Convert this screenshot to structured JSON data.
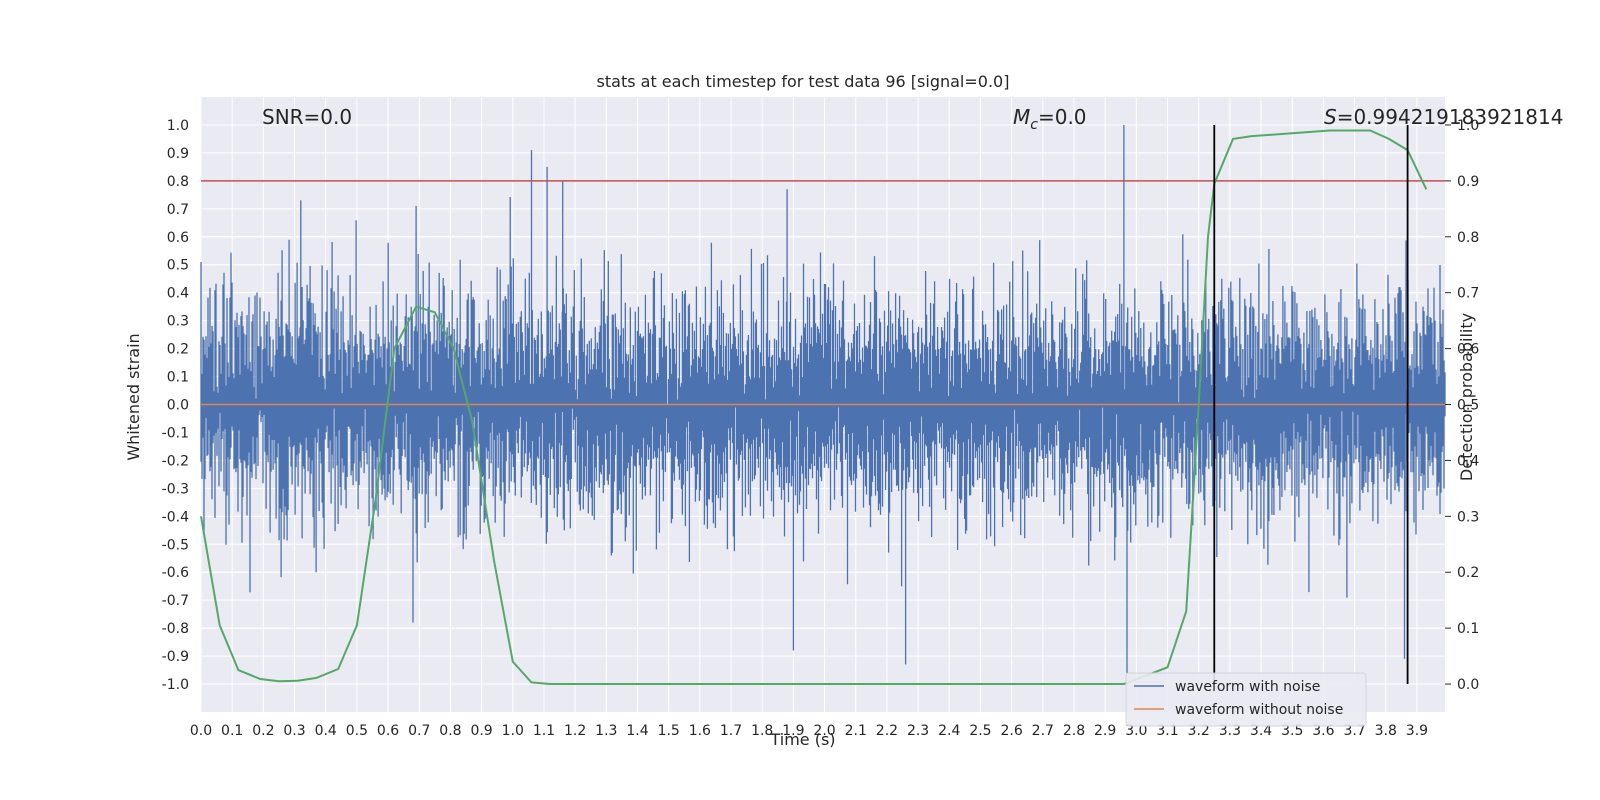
{
  "chart_data": {
    "type": "line",
    "title": "stats at each timestep for test data 96 [signal=0.0]",
    "xlabel": "Time (s)",
    "ylabel": "Whitened strain",
    "y2label": "Detection probability",
    "xlim": [
      0.0,
      3.99
    ],
    "ylim": [
      -1.1,
      1.1
    ],
    "y2lim": [
      -0.05,
      1.05
    ],
    "x_ticks": [
      0.0,
      0.1,
      0.2,
      0.3,
      0.4,
      0.5,
      0.6,
      0.7,
      0.8,
      0.9,
      1.0,
      1.1,
      1.2,
      1.3,
      1.4,
      1.5,
      1.6,
      1.7,
      1.8,
      1.9,
      2.0,
      2.1,
      2.2,
      2.3,
      2.4,
      2.5,
      2.6,
      2.7,
      2.8,
      2.9,
      3.0,
      3.1,
      3.2,
      3.3,
      3.4,
      3.5,
      3.6,
      3.7,
      3.8,
      3.9
    ],
    "x_tick_labels": [
      "0.0",
      "0.1",
      "0.2",
      "0.3",
      "0.4",
      "0.5",
      "0.6",
      "0.7",
      "0.8",
      "0.9",
      "1.0",
      "1.1",
      "1.2",
      "1.3",
      "1.4",
      "1.5",
      "1.6",
      "1.7",
      "1.8",
      "1.9",
      "2.0",
      "2.1",
      "2.2",
      "2.3",
      "2.4",
      "2.5",
      "2.6",
      "2.7",
      "2.8",
      "2.9",
      "3.0",
      "3.1",
      "3.2",
      "3.3",
      "3.4",
      "3.5",
      "3.6",
      "3.7",
      "3.8",
      "3.9"
    ],
    "y_ticks": [
      1.0,
      0.9,
      0.8,
      0.7,
      0.6,
      0.5,
      0.4,
      0.3,
      0.2,
      0.1,
      0.0,
      -0.1,
      -0.2,
      -0.3,
      -0.4,
      -0.5,
      -0.6,
      -0.7,
      -0.8,
      -0.9,
      -1.0
    ],
    "y_tick_labels": [
      "1.0",
      "0.9",
      "0.8",
      "0.7",
      "0.6",
      "0.5",
      "0.4",
      "0.3",
      "0.2",
      "0.1",
      "0.0",
      "-0.1",
      "-0.2",
      "-0.3",
      "-0.4",
      "-0.5",
      "-0.6",
      "-0.7",
      "-0.8",
      "-0.9",
      "-1.0"
    ],
    "y2_ticks": [
      0.0,
      0.1,
      0.2,
      0.3,
      0.4,
      0.5,
      0.6,
      0.7,
      0.8,
      0.9,
      1.0
    ],
    "y2_tick_labels": [
      "0.0",
      "0.1",
      "0.2",
      "0.3",
      "0.4",
      "0.5",
      "0.6",
      "0.7",
      "0.8",
      "0.9",
      "1.0"
    ],
    "grid": true,
    "legend_position": "bottom-right",
    "legend": [
      {
        "label": "waveform with noise",
        "color": "#4c72b0"
      },
      {
        "label": "waveform without noise",
        "color": "#dd8452"
      }
    ],
    "annotations": {
      "snr": "SNR=0.0",
      "mc_symbol": "M",
      "mc_sub": "c",
      "mc_value": "=0.0",
      "s_symbol": "S",
      "s_value": "=0.994219183921814"
    },
    "series": [
      {
        "name": "waveform with noise",
        "color": "#4c72b0",
        "axis": "left",
        "kind": "noise",
        "envelope": {
          "typical_amplitude": 0.45,
          "max_positive": 1.0,
          "min_negative": -0.96
        },
        "spikes": [
          {
            "x": 1.06,
            "y": 0.91
          },
          {
            "x": 1.11,
            "y": 0.85
          },
          {
            "x": 1.16,
            "y": 0.8
          },
          {
            "x": 2.96,
            "y": 1.0
          },
          {
            "x": 2.97,
            "y": -0.96
          },
          {
            "x": 0.32,
            "y": 0.73
          },
          {
            "x": 0.69,
            "y": 0.71
          },
          {
            "x": 1.88,
            "y": 0.77
          },
          {
            "x": 2.26,
            "y": -0.93
          },
          {
            "x": 3.86,
            "y": -0.91
          },
          {
            "x": 0.68,
            "y": -0.78
          },
          {
            "x": 1.9,
            "y": -0.88
          }
        ]
      },
      {
        "name": "waveform without noise",
        "color": "#dd8452",
        "axis": "left",
        "x": [
          0.0,
          3.99
        ],
        "y": [
          0.0,
          0.0
        ]
      },
      {
        "name": "",
        "color": "#55a868",
        "axis": "right",
        "x": [
          0.0,
          0.06,
          0.12,
          0.19,
          0.25,
          0.31,
          0.37,
          0.44,
          0.5,
          0.56,
          0.62,
          0.69,
          0.75,
          0.81,
          0.87,
          0.94,
          1.0,
          1.06,
          1.12,
          1.5,
          2.0,
          2.5,
          2.96,
          3.1,
          3.16,
          3.2,
          3.23,
          3.25,
          3.31,
          3.37,
          3.5,
          3.62,
          3.69,
          3.75,
          3.81,
          3.87,
          3.93
        ],
        "y": [
          0.3,
          0.105,
          0.025,
          0.009,
          0.005,
          0.006,
          0.011,
          0.027,
          0.105,
          0.33,
          0.6,
          0.675,
          0.665,
          0.6,
          0.47,
          0.22,
          0.04,
          0.003,
          0.0,
          0.0,
          0.0,
          0.0,
          0.0,
          0.03,
          0.13,
          0.5,
          0.8,
          0.895,
          0.975,
          0.98,
          0.985,
          0.99,
          0.99,
          0.99,
          0.975,
          0.955,
          0.885
        ]
      }
    ],
    "reference_lines": {
      "threshold": {
        "y": 0.9,
        "axis": "right",
        "color": "#c44e52"
      },
      "vertical_x": [
        3.25,
        3.87
      ],
      "vertical_y_top": 1.0,
      "vertical_y_bottom": 0.0,
      "vertical_color": "#000000"
    }
  }
}
